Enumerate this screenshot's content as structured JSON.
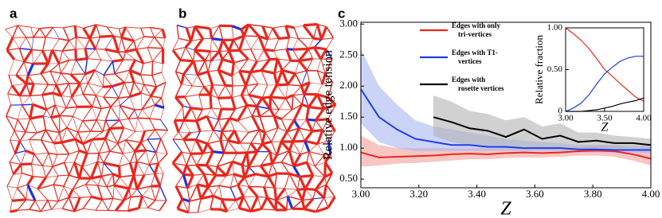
{
  "panel_labels": [
    "a",
    "b",
    "c"
  ],
  "chart_data": [
    {
      "type": "line",
      "ylabel": "Relative edge tension",
      "xlabel": "Z",
      "x": [
        3.0,
        3.0625,
        3.125,
        3.1875,
        3.25,
        3.3125,
        3.375,
        3.4375,
        3.5,
        3.5625,
        3.625,
        3.6875,
        3.75,
        3.8125,
        3.875,
        3.9375,
        4.0
      ],
      "xlim": [
        3.0,
        4.0
      ],
      "xticks": [
        {
          "value": 3.0,
          "label": "3.00"
        },
        {
          "value": 3.2,
          "label": "3.20"
        },
        {
          "value": 3.4,
          "label": "3.40"
        },
        {
          "value": 3.6,
          "label": "3.60"
        },
        {
          "value": 3.8,
          "label": "3.80"
        },
        {
          "value": 4.0,
          "label": "4.00"
        }
      ],
      "ylim": [
        0.36,
        3.03
      ],
      "yticks": [
        {
          "value": 0.5,
          "label": "0.50"
        },
        {
          "value": 1.0,
          "label": "1.00"
        },
        {
          "value": 1.5,
          "label": "1.50"
        },
        {
          "value": 2.0,
          "label": "2.00"
        },
        {
          "value": 2.5,
          "label": "2.50"
        },
        {
          "value": 3.0,
          "label": "3.00"
        }
      ],
      "series": [
        {
          "name": "Edges with only\ntri-vertices",
          "color": "#e8281e",
          "band_color": "#f4a09a",
          "values": [
            0.93,
            0.85,
            0.86,
            0.87,
            0.88,
            0.9,
            0.91,
            0.9,
            0.92,
            0.93,
            0.92,
            0.93,
            0.95,
            0.96,
            0.95,
            0.9,
            0.83
          ],
          "upper": [
            1.2,
            1.05,
            1.0,
            1.0,
            1.0,
            1.0,
            1.0,
            1.0,
            1.0,
            1.0,
            1.0,
            1.0,
            1.02,
            1.05,
            1.05,
            1.0,
            0.98
          ],
          "lower": [
            0.7,
            0.72,
            0.75,
            0.76,
            0.78,
            0.8,
            0.82,
            0.82,
            0.84,
            0.85,
            0.85,
            0.86,
            0.88,
            0.88,
            0.86,
            0.8,
            0.72
          ]
        },
        {
          "name": "Edges with T1-\nvertices",
          "color": "#1f3fe8",
          "band_color": "#a9b6f2",
          "values": [
            1.95,
            1.5,
            1.3,
            1.15,
            1.1,
            1.05,
            1.05,
            1.02,
            1.02,
            1.0,
            1.0,
            1.0,
            0.98,
            0.98,
            0.97,
            0.97,
            0.97
          ],
          "upper": [
            2.6,
            2.0,
            1.7,
            1.45,
            1.35,
            1.3,
            1.25,
            1.2,
            1.15,
            1.12,
            1.1,
            1.08,
            1.05,
            1.05,
            1.05,
            1.04,
            1.04
          ],
          "lower": [
            1.4,
            1.1,
            1.0,
            0.95,
            0.95,
            0.95,
            0.95,
            0.95,
            0.95,
            0.95,
            0.95,
            0.95,
            0.93,
            0.93,
            0.92,
            0.92,
            0.92
          ]
        },
        {
          "name": "Edges with\nrosette vertices",
          "color": "#000000",
          "band_color": "#b3b3b3",
          "values": [
            null,
            null,
            null,
            null,
            1.5,
            1.42,
            1.32,
            1.28,
            1.18,
            1.3,
            1.15,
            1.2,
            1.1,
            1.12,
            1.08,
            1.08,
            1.05
          ],
          "upper": [
            null,
            null,
            null,
            null,
            1.85,
            1.75,
            1.6,
            1.55,
            1.45,
            1.5,
            1.35,
            1.4,
            1.25,
            1.25,
            1.2,
            1.18,
            1.15
          ],
          "lower": [
            null,
            null,
            null,
            null,
            1.2,
            1.1,
            1.05,
            1.02,
            1.0,
            1.02,
            1.0,
            1.0,
            1.0,
            1.0,
            1.0,
            1.0,
            0.98
          ]
        }
      ]
    },
    {
      "type": "line",
      "ylabel": "Relative fraction",
      "xlabel": "Z",
      "x": [
        3.0,
        3.1,
        3.2,
        3.3,
        3.4,
        3.5,
        3.6,
        3.7,
        3.8,
        3.9,
        4.0
      ],
      "xlim": [
        3.0,
        4.0
      ],
      "xticks": [
        {
          "value": 3.0,
          "label": "3.00"
        },
        {
          "value": 3.5,
          "label": "3.50"
        },
        {
          "value": 4.0,
          "label": "4.00"
        }
      ],
      "ylim": [
        0,
        1
      ],
      "yticks": [
        0,
        {
          "value": 0.5,
          "label": "0.50"
        },
        {
          "value": 1.0,
          "label": "1.00"
        }
      ],
      "series": [
        {
          "color": "#e8281e",
          "values": [
            1.0,
            0.93,
            0.85,
            0.75,
            0.63,
            0.5,
            0.42,
            0.33,
            0.25,
            0.17,
            0.12
          ]
        },
        {
          "color": "#1f3fe8",
          "values": [
            0,
            0.04,
            0.1,
            0.2,
            0.33,
            0.45,
            0.53,
            0.6,
            0.64,
            0.66,
            0.66
          ]
        },
        {
          "color": "#000000",
          "values": [
            0,
            0,
            0,
            0.01,
            0.02,
            0.04,
            0.06,
            0.09,
            0.11,
            0.13,
            0.16
          ]
        }
      ]
    }
  ]
}
